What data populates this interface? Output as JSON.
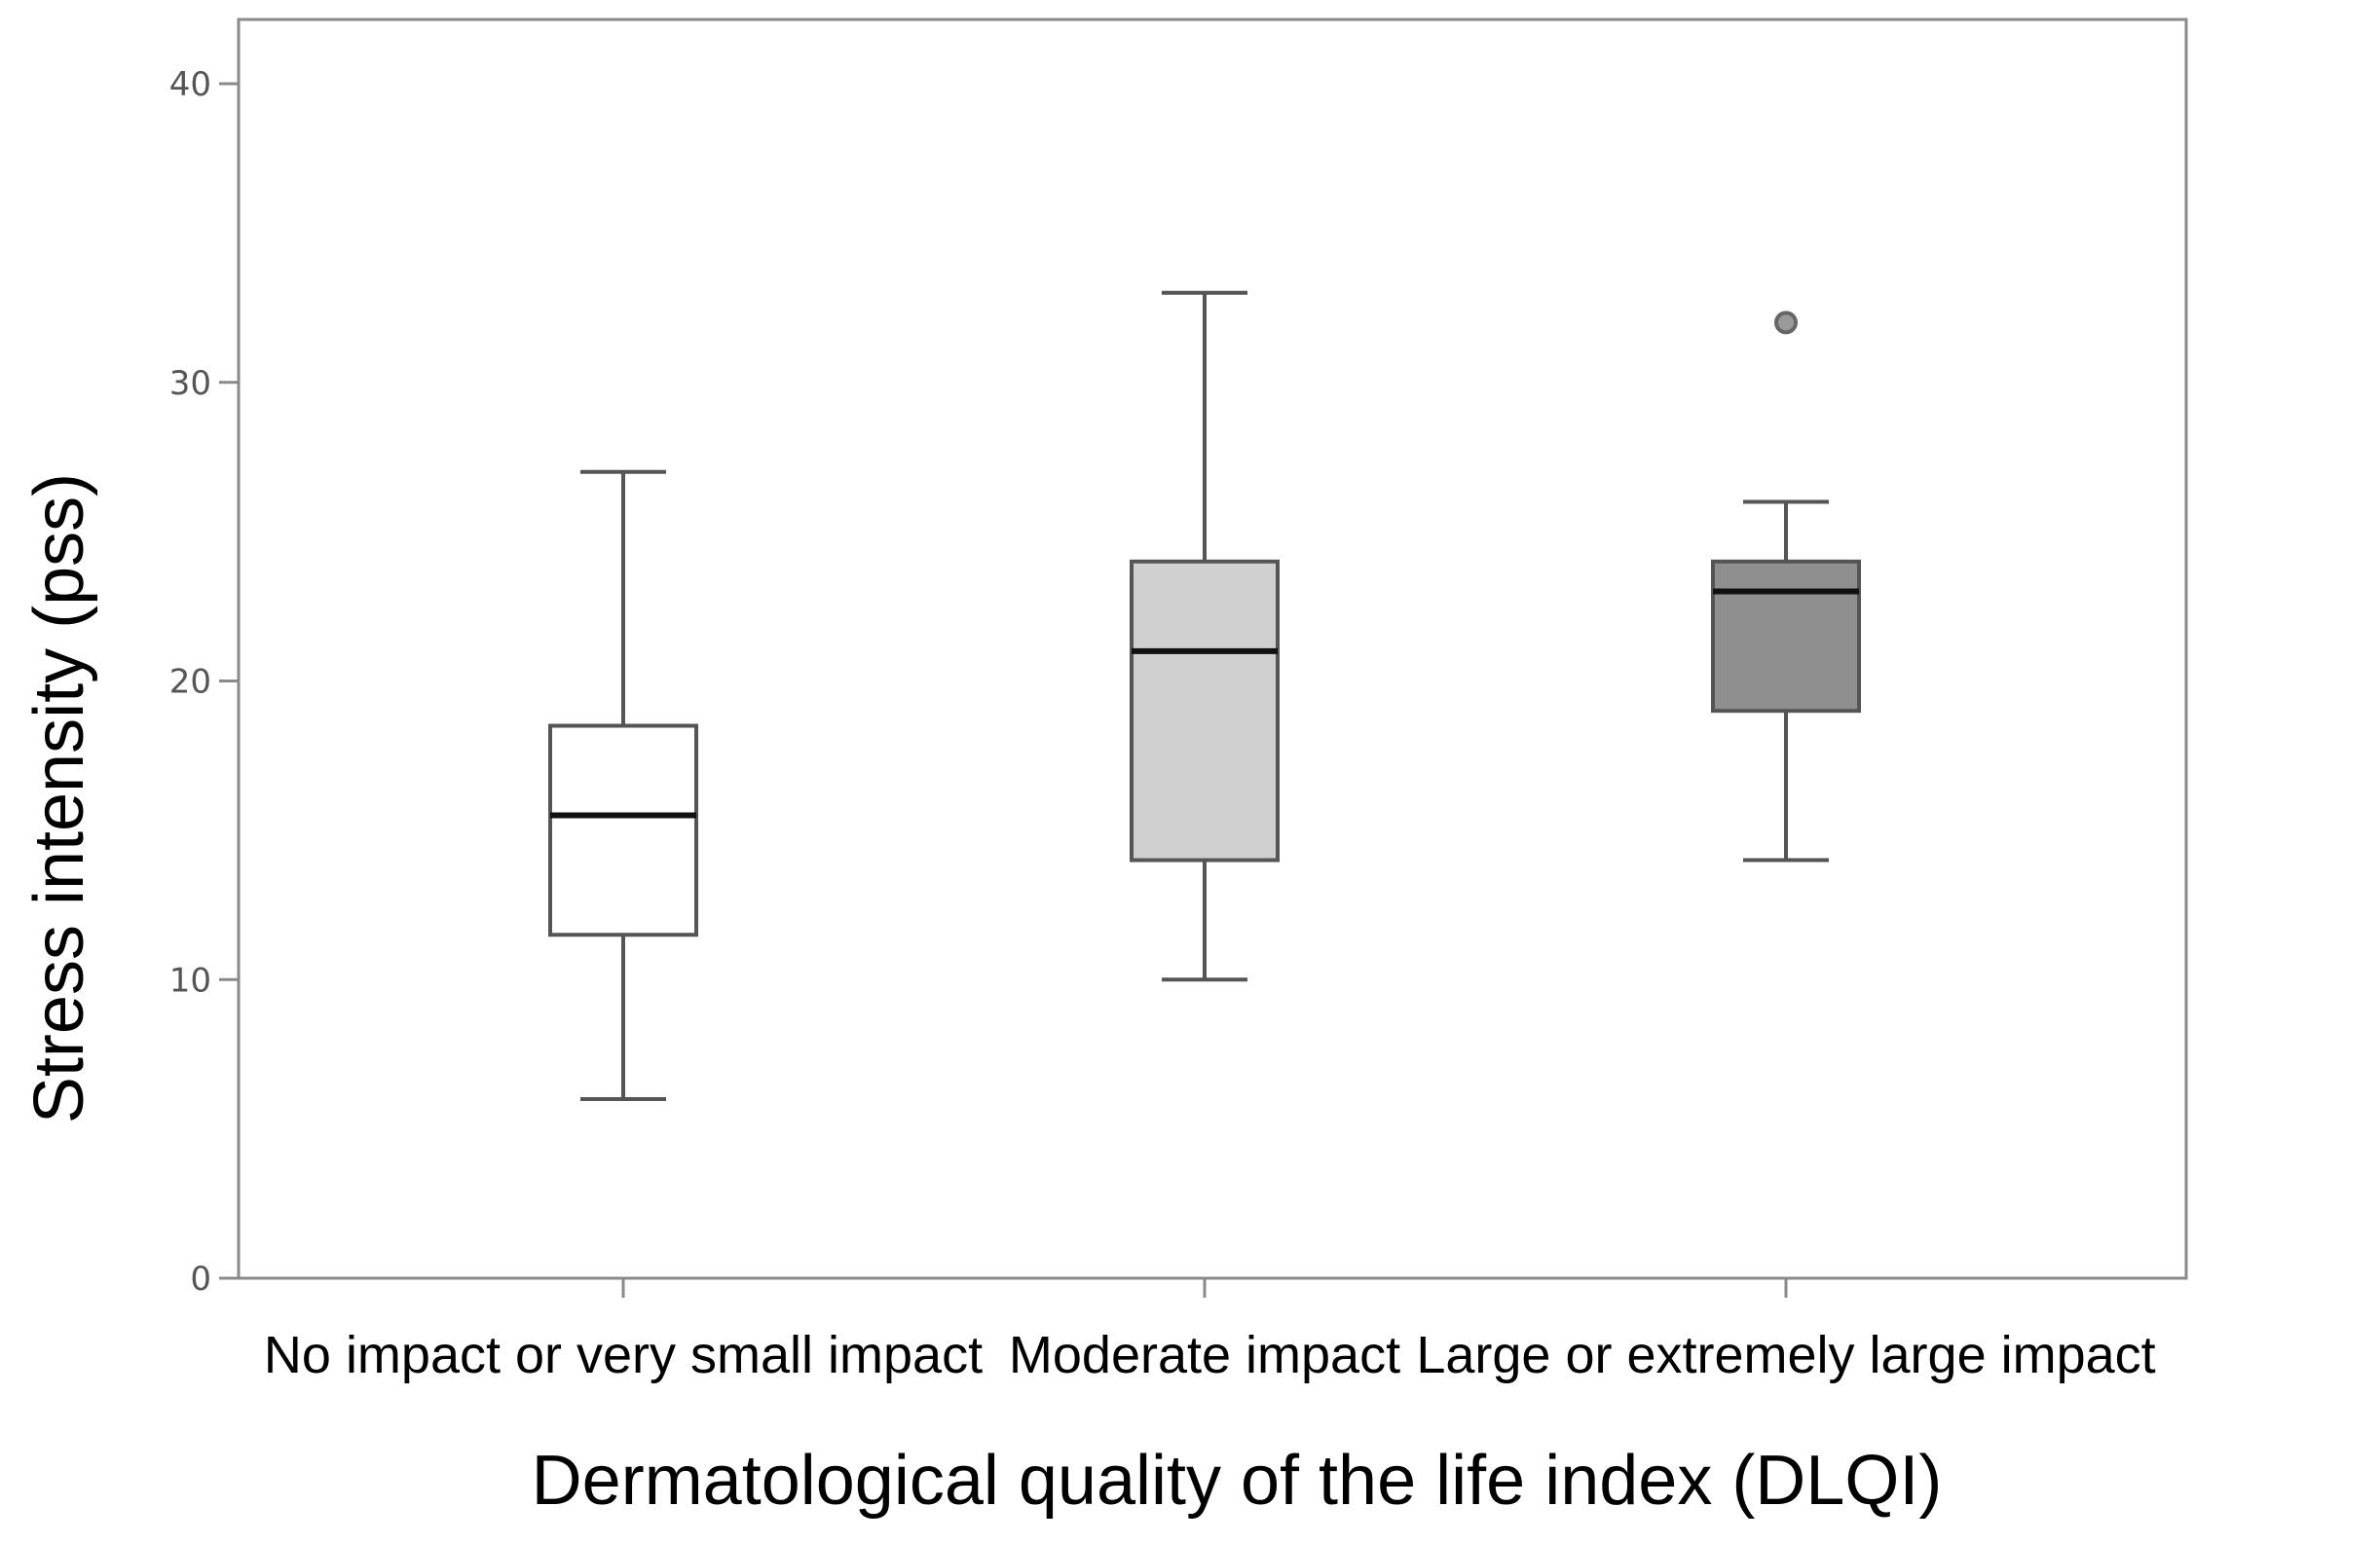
{
  "chart_data": {
    "type": "box",
    "xlabel": "Dermatological quality of the life index (DLQI)",
    "ylabel": "Stress intensity (pss)",
    "ylim": [
      0,
      40
    ],
    "yticks": [
      0,
      10,
      20,
      30,
      40
    ],
    "grid": false,
    "categories": [
      "No impact or very small impact",
      "Moderate impact",
      "Large or extremely large impact"
    ],
    "boxes": [
      {
        "min": 6,
        "q1": 11.5,
        "median": 15.5,
        "q3": 18.5,
        "max": 27,
        "outliers": [],
        "color": "#ffffff"
      },
      {
        "min": 10,
        "q1": 14,
        "median": 21,
        "q3": 24,
        "max": 33,
        "outliers": [],
        "color": "#d0d0d0"
      },
      {
        "min": 14,
        "q1": 19,
        "median": 23,
        "q3": 24,
        "max": 26,
        "outliers": [
          32
        ],
        "color": "#8f8f8f"
      }
    ]
  }
}
